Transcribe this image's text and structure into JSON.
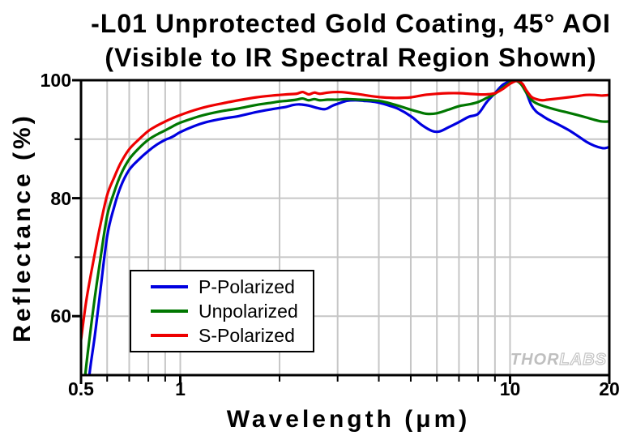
{
  "title": {
    "line1": "-L01 Unprotected Gold Coating, 45° AOI",
    "line2": "(Visible to IR Spectral Region Shown)"
  },
  "watermark": {
    "part1": "THOR",
    "part2": "LABS"
  },
  "legend": {
    "items": [
      {
        "label": "P-Polarized",
        "color": "#0000E0"
      },
      {
        "label": "Unpolarized",
        "color": "#007700"
      },
      {
        "label": "S-Polarized",
        "color": "#EE0000"
      }
    ]
  },
  "chart_data": {
    "type": "line",
    "title": "-L01 Unprotected Gold Coating, 45° AOI (Visible to IR Spectral Region Shown)",
    "xlabel": "Wavelength (μm)",
    "ylabel": "Reflectance (%)",
    "x_scale": "log",
    "xlim": [
      0.5,
      20
    ],
    "ylim": [
      50,
      100
    ],
    "grid": true,
    "grid_color": "#c6c6c6",
    "grid_x_values": [
      0.6,
      0.7,
      0.8,
      0.9,
      1,
      2,
      3,
      4,
      5,
      6,
      7,
      8,
      9,
      10
    ],
    "grid_y_values": [
      60,
      70,
      80,
      90
    ],
    "x_major_ticks": [
      {
        "value": 0.5,
        "label": "0.5"
      },
      {
        "value": 1,
        "label": "1"
      },
      {
        "value": 10,
        "label": "10"
      },
      {
        "value": 20,
        "label": "20"
      }
    ],
    "x_minor_ticks": [
      0.6,
      0.7,
      0.8,
      0.9,
      2,
      3,
      4,
      5,
      6,
      7,
      8,
      9
    ],
    "y_major_ticks": [
      {
        "value": 60,
        "label": "60"
      },
      {
        "value": 80,
        "label": "80"
      },
      {
        "value": 100,
        "label": "100"
      }
    ],
    "y_minor_ticks": [
      70,
      90
    ],
    "legend_position": "lower-left",
    "series": [
      {
        "name": "P-Polarized",
        "color": "#0000E0",
        "points": [
          [
            0.52,
            44
          ],
          [
            0.53,
            50
          ],
          [
            0.55,
            56.5
          ],
          [
            0.57,
            63.5
          ],
          [
            0.6,
            73.5
          ],
          [
            0.63,
            78.5
          ],
          [
            0.66,
            82
          ],
          [
            0.7,
            84.8
          ],
          [
            0.75,
            86.6
          ],
          [
            0.8,
            88.0
          ],
          [
            0.85,
            89.1
          ],
          [
            0.9,
            89.9
          ],
          [
            0.93,
            90.2
          ],
          [
            0.96,
            90.6
          ],
          [
            1.0,
            91.2
          ],
          [
            1.1,
            92.2
          ],
          [
            1.2,
            92.9
          ],
          [
            1.35,
            93.5
          ],
          [
            1.5,
            93.9
          ],
          [
            1.7,
            94.6
          ],
          [
            1.9,
            95.1
          ],
          [
            2.0,
            95.3
          ],
          [
            2.1,
            95.5
          ],
          [
            2.2,
            95.8
          ],
          [
            2.3,
            95.9
          ],
          [
            2.45,
            95.7
          ],
          [
            2.6,
            95.3
          ],
          [
            2.75,
            95.1
          ],
          [
            2.9,
            95.7
          ],
          [
            3.0,
            96.0
          ],
          [
            3.2,
            96.5
          ],
          [
            3.4,
            96.6
          ],
          [
            3.6,
            96.5
          ],
          [
            3.8,
            96.4
          ],
          [
            4.0,
            96.2
          ],
          [
            4.3,
            95.7
          ],
          [
            4.6,
            95.1
          ],
          [
            5.0,
            93.9
          ],
          [
            5.4,
            92.4
          ],
          [
            5.8,
            91.4
          ],
          [
            6.1,
            91.3
          ],
          [
            6.5,
            92.0
          ],
          [
            7.0,
            92.9
          ],
          [
            7.5,
            93.8
          ],
          [
            8.0,
            94.3
          ],
          [
            8.5,
            96.3
          ],
          [
            9.0,
            97.8
          ],
          [
            9.5,
            99.2
          ],
          [
            10.0,
            99.8
          ],
          [
            10.4,
            99.9
          ],
          [
            10.8,
            99.4
          ],
          [
            11.2,
            97.9
          ],
          [
            11.6,
            95.8
          ],
          [
            12.0,
            94.7
          ],
          [
            12.5,
            94.0
          ],
          [
            13.0,
            93.4
          ],
          [
            14.0,
            92.5
          ],
          [
            15.0,
            91.6
          ],
          [
            16.0,
            90.6
          ],
          [
            17.0,
            89.6
          ],
          [
            18.0,
            88.9
          ],
          [
            19.0,
            88.5
          ],
          [
            19.5,
            88.5
          ],
          [
            20.0,
            88.7
          ]
        ]
      },
      {
        "name": "Unpolarized",
        "color": "#007700",
        "points": [
          [
            0.505,
            44
          ],
          [
            0.515,
            50
          ],
          [
            0.53,
            56
          ],
          [
            0.55,
            63
          ],
          [
            0.57,
            69
          ],
          [
            0.6,
            77
          ],
          [
            0.63,
            81
          ],
          [
            0.66,
            84
          ],
          [
            0.7,
            86.6
          ],
          [
            0.75,
            88.5
          ],
          [
            0.8,
            89.9
          ],
          [
            0.85,
            90.8
          ],
          [
            0.9,
            91.5
          ],
          [
            0.95,
            92.2
          ],
          [
            1.0,
            92.8
          ],
          [
            1.1,
            93.6
          ],
          [
            1.2,
            94.2
          ],
          [
            1.35,
            94.8
          ],
          [
            1.5,
            95.2
          ],
          [
            1.7,
            95.8
          ],
          [
            1.9,
            96.2
          ],
          [
            2.0,
            96.4
          ],
          [
            2.1,
            96.5
          ],
          [
            2.25,
            96.7
          ],
          [
            2.35,
            96.9
          ],
          [
            2.45,
            96.6
          ],
          [
            2.55,
            96.8
          ],
          [
            2.65,
            96.6
          ],
          [
            2.8,
            96.7
          ],
          [
            3.0,
            96.7
          ],
          [
            3.2,
            96.8
          ],
          [
            3.5,
            96.7
          ],
          [
            3.8,
            96.6
          ],
          [
            4.1,
            96.4
          ],
          [
            4.5,
            95.8
          ],
          [
            5.0,
            95.0
          ],
          [
            5.3,
            94.6
          ],
          [
            5.6,
            94.3
          ],
          [
            6.0,
            94.4
          ],
          [
            6.5,
            95.0
          ],
          [
            7.0,
            95.6
          ],
          [
            7.5,
            95.9
          ],
          [
            8.0,
            96.3
          ],
          [
            8.5,
            97.0
          ],
          [
            9.0,
            97.7
          ],
          [
            9.5,
            98.7
          ],
          [
            10.0,
            99.6
          ],
          [
            10.4,
            99.9
          ],
          [
            10.8,
            99.3
          ],
          [
            11.2,
            97.9
          ],
          [
            11.6,
            96.7
          ],
          [
            12.0,
            96.1
          ],
          [
            12.5,
            95.7
          ],
          [
            13.0,
            95.4
          ],
          [
            14.0,
            94.9
          ],
          [
            15.0,
            94.5
          ],
          [
            16.0,
            94.1
          ],
          [
            17.0,
            93.7
          ],
          [
            18.0,
            93.3
          ],
          [
            19.0,
            93.0
          ],
          [
            20.0,
            93.0
          ]
        ]
      },
      {
        "name": "S-Polarized",
        "color": "#EE0000",
        "points": [
          [
            0.5,
            56
          ],
          [
            0.52,
            63
          ],
          [
            0.55,
            70.5
          ],
          [
            0.57,
            75
          ],
          [
            0.6,
            80.5
          ],
          [
            0.63,
            83.5
          ],
          [
            0.66,
            86
          ],
          [
            0.7,
            88.3
          ],
          [
            0.75,
            90.0
          ],
          [
            0.8,
            91.4
          ],
          [
            0.85,
            92.3
          ],
          [
            0.9,
            93.0
          ],
          [
            0.95,
            93.6
          ],
          [
            1.0,
            94.1
          ],
          [
            1.1,
            94.9
          ],
          [
            1.2,
            95.5
          ],
          [
            1.35,
            96.1
          ],
          [
            1.5,
            96.6
          ],
          [
            1.7,
            97.1
          ],
          [
            1.9,
            97.4
          ],
          [
            2.0,
            97.5
          ],
          [
            2.1,
            97.6
          ],
          [
            2.25,
            97.7
          ],
          [
            2.35,
            98.0
          ],
          [
            2.45,
            97.6
          ],
          [
            2.55,
            97.9
          ],
          [
            2.65,
            97.7
          ],
          [
            2.8,
            97.9
          ],
          [
            3.0,
            98.0
          ],
          [
            3.2,
            97.9
          ],
          [
            3.5,
            97.6
          ],
          [
            3.8,
            97.3
          ],
          [
            4.1,
            97.1
          ],
          [
            4.5,
            97.0
          ],
          [
            5.0,
            97.1
          ],
          [
            5.5,
            97.5
          ],
          [
            6.0,
            97.7
          ],
          [
            6.5,
            97.8
          ],
          [
            7.0,
            97.8
          ],
          [
            7.5,
            97.7
          ],
          [
            8.0,
            97.6
          ],
          [
            8.5,
            97.6
          ],
          [
            9.0,
            97.8
          ],
          [
            9.5,
            98.5
          ],
          [
            10.0,
            99.4
          ],
          [
            10.5,
            99.9
          ],
          [
            10.9,
            99.4
          ],
          [
            11.2,
            98.3
          ],
          [
            11.6,
            97.2
          ],
          [
            12.0,
            96.8
          ],
          [
            12.5,
            96.6
          ],
          [
            13.0,
            96.7
          ],
          [
            14.0,
            96.9
          ],
          [
            15.0,
            97.1
          ],
          [
            16.0,
            97.3
          ],
          [
            17.0,
            97.5
          ],
          [
            18.0,
            97.5
          ],
          [
            19.0,
            97.4
          ],
          [
            20.0,
            97.5
          ]
        ]
      }
    ],
    "plot_frame_color": "#000000"
  }
}
